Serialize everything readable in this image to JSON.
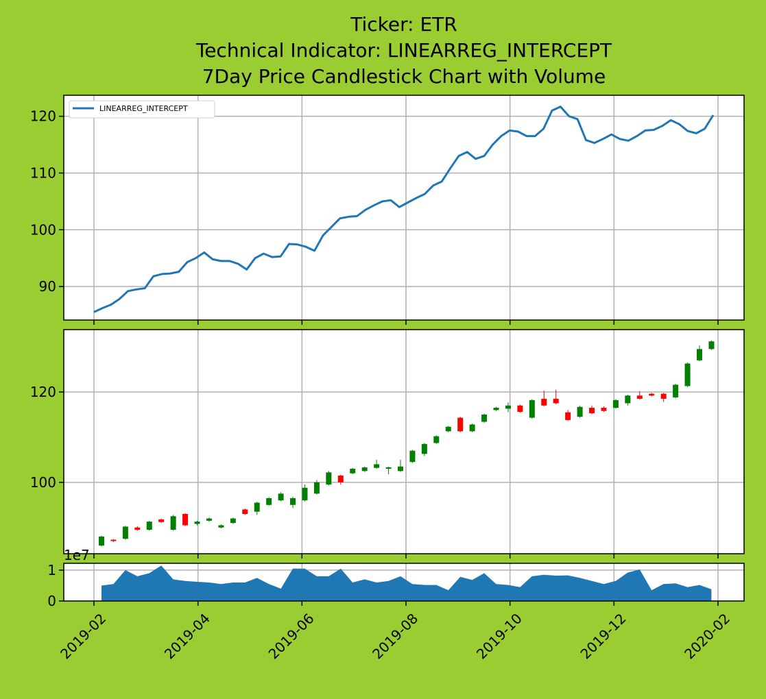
{
  "title": [
    "Ticker: ETR",
    "Technical Indicator: LINEARREG_INTERCEPT",
    "7Day Price Candlestick Chart with Volume"
  ],
  "xticks": [
    "2019-02",
    "2019-04",
    "2019-06",
    "2019-08",
    "2019-10",
    "2019-12",
    "2020-02"
  ],
  "chart_data": [
    {
      "type": "line",
      "grid": true,
      "legend": "upper left",
      "ylim": [
        84.1,
        123.7
      ],
      "yticks": [
        90,
        100,
        110,
        120
      ],
      "series": [
        {
          "name": "LINEARREG_INTERCEPT",
          "color": "#1f77b4",
          "values": [
            85.5,
            86.2,
            86.8,
            87.8,
            89.2,
            89.5,
            89.7,
            91.8,
            92.2,
            92.3,
            92.6,
            94.3,
            95.0,
            96.0,
            94.8,
            94.5,
            94.5,
            94.0,
            93.0,
            95.0,
            95.8,
            95.2,
            95.3,
            97.5,
            97.4,
            97.0,
            96.3,
            99.0,
            100.5,
            102.0,
            102.3,
            102.4,
            103.5,
            104.3,
            105.0,
            105.2,
            104.0,
            104.8,
            105.6,
            106.3,
            107.8,
            108.5,
            110.8,
            113.0,
            113.7,
            112.5,
            113.0,
            115.0,
            116.5,
            117.5,
            117.3,
            116.5,
            116.5,
            117.8,
            121.0,
            121.7,
            120.0,
            119.5,
            115.8,
            115.3,
            116.0,
            116.8,
            116.0,
            115.7,
            116.5,
            117.5,
            117.6,
            118.3,
            119.3,
            118.6,
            117.4,
            117.0,
            117.8,
            120.2
          ]
        }
      ]
    },
    {
      "type": "candlestick",
      "grid": true,
      "up_color": "#008000",
      "down_color": "#ff0000",
      "ylim": [
        84.2,
        133.8
      ],
      "yticks": [
        100,
        120
      ],
      "open": [
        86,
        87.3,
        87.5,
        90.0,
        89.5,
        91.8,
        89.5,
        93.0,
        90.8,
        91.5,
        90.0,
        91.0,
        94.0,
        93.5,
        95.0,
        96.0,
        95.0,
        96.0,
        97.5,
        99.5,
        101.5,
        102.0,
        102.5,
        103.2,
        103.0,
        102.5,
        104.5,
        106.3,
        108.7,
        111.3,
        114.3,
        111.3,
        113.4,
        116.0,
        116.3,
        117.0,
        114.3,
        118.5,
        118.5,
        115.5,
        114.5,
        116.5,
        116.5,
        116.5,
        117.5,
        119.2,
        119.6,
        119.6,
        118.8,
        121.3,
        127.0,
        129.5
      ],
      "high": [
        88.2,
        87.4,
        90.4,
        90.3,
        91.5,
        92.0,
        92.8,
        93.2,
        91.5,
        92.2,
        90.7,
        92.2,
        94.2,
        95.7,
        96.7,
        97.8,
        96.8,
        99.5,
        100.5,
        102.5,
        101.7,
        103.2,
        103.5,
        105.0,
        103.5,
        105.0,
        107.2,
        108.7,
        110.4,
        112.5,
        114.5,
        113.0,
        115.2,
        116.7,
        117.7,
        117.2,
        118.4,
        120.3,
        120.5,
        116.0,
        117.0,
        117.0,
        116.8,
        118.4,
        119.4,
        120.2,
        119.8,
        119.8,
        121.8,
        126.5,
        130.3,
        131.4
      ],
      "low": [
        85.8,
        86.8,
        87.3,
        89.3,
        89.3,
        91.0,
        89.3,
        90.3,
        90.5,
        91.3,
        89.8,
        90.8,
        92.8,
        92.8,
        94.8,
        95.8,
        94.3,
        95.8,
        97.3,
        99.3,
        99.5,
        101.8,
        102.3,
        103.0,
        101.8,
        102.3,
        104.3,
        105.8,
        108.5,
        111.1,
        111.1,
        111.1,
        113.2,
        115.8,
        115.5,
        115.4,
        114.1,
        116.8,
        117.3,
        113.6,
        114.3,
        115.1,
        115.6,
        116.3,
        117.0,
        118.3,
        119.0,
        117.8,
        118.6,
        121.1,
        126.8,
        129.3
      ],
      "close": [
        88,
        87.0,
        90.2,
        89.5,
        91.3,
        91.2,
        92.5,
        90.5,
        91.3,
        92.0,
        90.5,
        92.0,
        93.0,
        95.5,
        96.5,
        97.5,
        96.5,
        98.8,
        100.0,
        102.2,
        100.0,
        103.0,
        103.3,
        104.0,
        103.3,
        103.5,
        107.0,
        108.5,
        110.2,
        112.3,
        111.3,
        112.8,
        115.0,
        116.5,
        117.0,
        115.6,
        118.2,
        117.0,
        117.5,
        113.8,
        116.7,
        115.3,
        115.8,
        118.2,
        119.2,
        118.5,
        119.2,
        118.5,
        121.6,
        126.3,
        129.5,
        131.2
      ]
    },
    {
      "type": "area",
      "grid": true,
      "color": "#1f77b4",
      "offset_label": "1e7",
      "ylim": [
        0,
        12200000
      ],
      "yticks": [
        0,
        {
          "value": 10000000,
          "label": "1"
        }
      ],
      "values": [
        5000000,
        5500000,
        10000000,
        8000000,
        9000000,
        11500000,
        7000000,
        6500000,
        6200000,
        6000000,
        5500000,
        6000000,
        6000000,
        7500000,
        5500000,
        4000000,
        10500000,
        10500000,
        8000000,
        8000000,
        10500000,
        6000000,
        7000000,
        6000000,
        6500000,
        8000000,
        5500000,
        5200000,
        5200000,
        3500000,
        7800000,
        6800000,
        9000000,
        5500000,
        5200000,
        4500000,
        8000000,
        8500000,
        8200000,
        8300000,
        7500000,
        6500000,
        5500000,
        6500000,
        9200000,
        10200000,
        3500000,
        5500000,
        5700000,
        4500000,
        5200000,
        3800000
      ]
    }
  ]
}
